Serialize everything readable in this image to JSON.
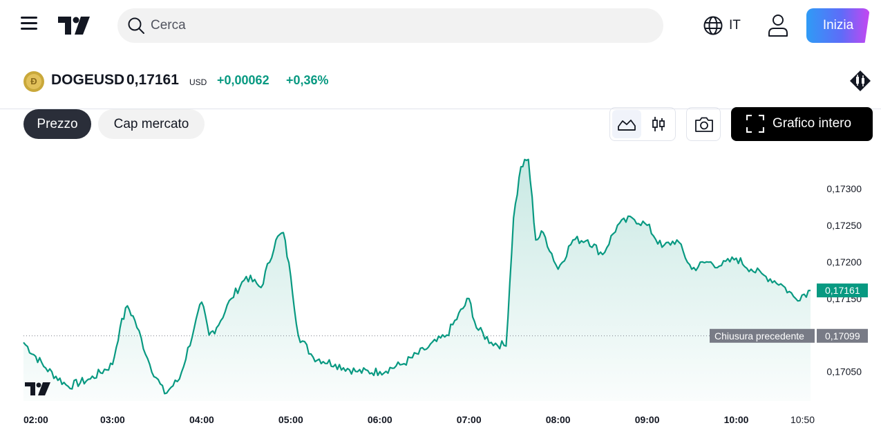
{
  "header": {
    "search_placeholder": "Cerca",
    "language": "IT",
    "start_label": "Inizia"
  },
  "symbol": {
    "ticker": "DOGEUSD",
    "price": "0,17161",
    "currency": "USD",
    "change": "+0,00062",
    "change_pct": "+0,36%"
  },
  "toolbar": {
    "tab_price": "Prezzo",
    "tab_market_cap": "Cap mercato",
    "fullscreen_label": "Grafico intero"
  },
  "colors": {
    "line": "#089981",
    "price_tag": "#089981",
    "prev_close_tag": "#787b86"
  },
  "chart_data": {
    "type": "area",
    "series": [
      {
        "x": [
          "02:00",
          "02:15",
          "02:30",
          "02:45",
          "03:00",
          "03:05",
          "03:10",
          "03:15",
          "03:25",
          "03:35",
          "03:45",
          "03:55",
          "04:00",
          "04:05",
          "04:10",
          "04:20",
          "04:30",
          "04:40",
          "04:50",
          "04:55",
          "05:00",
          "05:05",
          "05:15",
          "05:30",
          "05:45",
          "06:00",
          "06:15",
          "06:30",
          "06:45",
          "07:00",
          "07:05",
          "07:15",
          "07:25",
          "07:30",
          "07:35",
          "07:40",
          "07:45",
          "07:50",
          "08:00",
          "08:10",
          "08:20",
          "08:30",
          "08:40",
          "08:50",
          "09:00",
          "09:10",
          "09:20",
          "09:30",
          "09:40",
          "09:50",
          "10:00",
          "10:10",
          "10:20",
          "10:30",
          "10:40",
          "10:50"
        ],
        "values": [
          0.1709,
          0.17055,
          0.1703,
          0.1704,
          0.1706,
          0.1711,
          0.1714,
          0.1712,
          0.1706,
          0.1702,
          0.1704,
          0.1711,
          0.17145,
          0.171,
          0.1711,
          0.1715,
          0.1718,
          0.17165,
          0.1723,
          0.1724,
          0.1718,
          0.171,
          0.1707,
          0.1706,
          0.1705,
          0.1705,
          0.1706,
          0.1708,
          0.171,
          0.1715,
          0.1711,
          0.1709,
          0.17085,
          0.1726,
          0.1733,
          0.1734,
          0.1723,
          0.1724,
          0.1719,
          0.1723,
          0.1723,
          0.1721,
          0.1725,
          0.1726,
          0.1725,
          0.1722,
          0.1723,
          0.1719,
          0.172,
          0.17195,
          0.17205,
          0.1719,
          0.1718,
          0.1717,
          0.1715,
          0.17161
        ]
      }
    ],
    "y_ticks": [
      "0,17300",
      "0,17250",
      "0,17200",
      "0,17150",
      "0,17050"
    ],
    "x_ticks": [
      "02:00",
      "03:00",
      "04:00",
      "05:00",
      "06:00",
      "07:00",
      "08:00",
      "09:00",
      "10:00",
      "10:50"
    ],
    "ylim": [
      0.1701,
      0.1735
    ],
    "current_price": 0.17161,
    "current_price_label": "0,17161",
    "previous_close": 0.17099,
    "previous_close_label": "0,17099",
    "previous_close_text": "Chiusura precedente"
  }
}
